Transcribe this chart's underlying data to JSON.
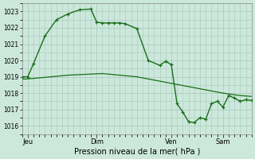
{
  "xlabel": "Pression niveau de la mer( hPa )",
  "bg_color": "#cce8dc",
  "line_color": "#1a6e1a",
  "grid_color": "#a8c8b8",
  "ylim": [
    1015.5,
    1023.5
  ],
  "yticks": [
    1016,
    1017,
    1018,
    1019,
    1020,
    1021,
    1022,
    1023
  ],
  "xlim": [
    0,
    40
  ],
  "xtick_positions": [
    1,
    13,
    26,
    35
  ],
  "xtick_labels": [
    "Jeu",
    "Dim",
    "Ven",
    "Sam"
  ],
  "line1_x": [
    0,
    2,
    5,
    8,
    11,
    14,
    17,
    20,
    23,
    26,
    29,
    32,
    35,
    38,
    40
  ],
  "line1_y": [
    1018.85,
    1018.9,
    1019.0,
    1019.1,
    1019.15,
    1019.2,
    1019.1,
    1019.0,
    1018.8,
    1018.6,
    1018.4,
    1018.2,
    1018.0,
    1017.85,
    1017.8
  ],
  "line2_x": [
    0,
    1,
    2,
    4,
    6,
    8,
    10,
    12,
    13,
    14,
    15,
    16,
    17,
    18,
    20,
    22,
    24,
    25,
    26,
    27,
    28,
    29,
    30,
    31,
    32,
    33,
    34,
    35,
    36,
    37,
    38,
    39,
    40
  ],
  "line2_y": [
    1019.0,
    1019.0,
    1019.8,
    1021.5,
    1022.5,
    1022.85,
    1023.1,
    1023.15,
    1022.35,
    1022.3,
    1022.3,
    1022.3,
    1022.3,
    1022.25,
    1021.95,
    1020.0,
    1019.7,
    1019.95,
    1019.75,
    1017.35,
    1016.85,
    1016.25,
    1016.2,
    1016.5,
    1016.4,
    1017.35,
    1017.5,
    1017.15,
    1017.85,
    1017.7,
    1017.5,
    1017.6,
    1017.55
  ]
}
